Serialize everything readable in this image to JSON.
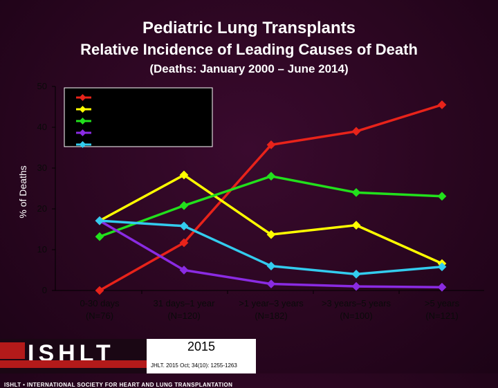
{
  "header": {
    "title": "Pediatric Lung Transplants",
    "subtitle": "Relative Incidence of Leading Causes of Death",
    "period": "(Deaths: January 2000 – June 2014)"
  },
  "chart_data": {
    "type": "line",
    "ylabel": "% of Deaths",
    "ylim": [
      0,
      50
    ],
    "yticks": [
      0,
      10,
      20,
      30,
      40,
      50
    ],
    "grid": false,
    "legend_position": "top-left",
    "categories": [
      [
        "0-30 days",
        "(N=76)"
      ],
      [
        "31 days–1 year",
        "(N=120)"
      ],
      [
        ">1 year–3 years",
        "(N=182)"
      ],
      [
        ">3 years–5 years",
        "(N=100)"
      ],
      [
        ">5 years",
        "(N=121)"
      ]
    ],
    "series": [
      {
        "color": "#e8231a",
        "values": [
          0,
          11.7,
          35.7,
          39.0,
          45.5
        ]
      },
      {
        "color": "#ffff00",
        "values": [
          17.1,
          28.3,
          13.7,
          16.0,
          6.6
        ]
      },
      {
        "color": "#22e01c",
        "values": [
          13.2,
          20.8,
          28.0,
          24.0,
          23.1
        ]
      },
      {
        "color": "#8a2be2",
        "values": [
          17.1,
          5.0,
          1.6,
          1.0,
          0.8
        ]
      },
      {
        "color": "#33ccee",
        "values": [
          17.1,
          15.8,
          6.0,
          4.0,
          5.8
        ]
      }
    ]
  },
  "logo": {
    "letters": "ISHLT",
    "tagline": "ISHLT • INTERNATIONAL SOCIETY FOR HEART AND LUNG TRANSPLANTATION",
    "year": "2015",
    "citation": "JHLT. 2015 Oct; 34(10): 1255-1263"
  }
}
